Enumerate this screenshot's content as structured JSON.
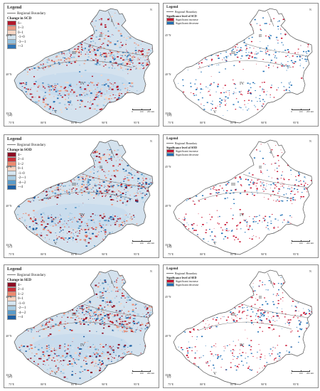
{
  "legend_heading": "Legend",
  "boundary_label": "Regional Boundary",
  "colors": {
    "land": "#d4e2ee",
    "boundary": "#777777",
    "sig_inc": "#c8102e",
    "sig_dec": "#1f6fb5"
  },
  "lat_labels": [
    "45°N",
    "40°N",
    "35°N"
  ],
  "lon_labels": [
    "75°E",
    "80°E",
    "85°E",
    "90°E",
    "95°E"
  ],
  "region_labels": [
    "I",
    "II",
    "III",
    "IV",
    "V"
  ],
  "scale": {
    "ticks": [
      "0",
      "100",
      "200 km"
    ]
  },
  "north_label": "N",
  "panels": [
    {
      "id": "a",
      "label": "(a)",
      "kind": "change",
      "legend_title": "Change in SCD",
      "classes": [
        {
          "label": "6~",
          "color": "#b2182b"
        },
        {
          "label": "1~3",
          "color": "#e99a83"
        },
        {
          "label": "0~1",
          "color": "#f6d6c4"
        },
        {
          "label": "-1~0",
          "color": "#d5e5f0"
        },
        {
          "label": "-3~-1",
          "color": "#92c0de"
        },
        {
          "label": "~-3",
          "color": "#2f74b4"
        }
      ]
    },
    {
      "id": "b",
      "label": "(b)",
      "kind": "sig",
      "legend_title": "Significance level of SCD",
      "classes": [
        {
          "label": "Significant increase",
          "color": "#c8102e"
        },
        {
          "label": "Significant decrease",
          "color": "#1f6fb5"
        }
      ]
    },
    {
      "id": "c",
      "label": "(c)",
      "kind": "change",
      "legend_title": "Change in SOD",
      "classes": [
        {
          "label": "4~",
          "color": "#8e0d24"
        },
        {
          "label": "2~4",
          "color": "#c8323b"
        },
        {
          "label": "1~2",
          "color": "#ec8a6f"
        },
        {
          "label": "0~1",
          "color": "#f7d3c0"
        },
        {
          "label": "-1~0",
          "color": "#d5e5f0"
        },
        {
          "label": "-2~-1",
          "color": "#a9cde3"
        },
        {
          "label": "-4~-2",
          "color": "#5a9bc9"
        },
        {
          "label": "~-4",
          "color": "#1d5fa3"
        }
      ]
    },
    {
      "id": "d",
      "label": "(d)",
      "kind": "sig",
      "legend_title": "Significance level of SOD",
      "classes": [
        {
          "label": "Significant increase",
          "color": "#c8102e"
        },
        {
          "label": "Significant decrease",
          "color": "#1f6fb5"
        }
      ]
    },
    {
      "id": "e",
      "label": "(e)",
      "kind": "change",
      "legend_title": "Change in SED",
      "classes": [
        {
          "label": "4~",
          "color": "#8e0d24"
        },
        {
          "label": "2~4",
          "color": "#c8323b"
        },
        {
          "label": "1~2",
          "color": "#ec8a6f"
        },
        {
          "label": "0~1",
          "color": "#f7d3c0"
        },
        {
          "label": "-1~0",
          "color": "#d5e5f0"
        },
        {
          "label": "-2~-1",
          "color": "#a9cde3"
        },
        {
          "label": "-4~-2",
          "color": "#5a9bc9"
        },
        {
          "label": "~-4",
          "color": "#1d5fa3"
        }
      ]
    },
    {
      "id": "f",
      "label": "(f)",
      "kind": "sig",
      "legend_title": "Significance level of SED",
      "classes": [
        {
          "label": "Significant increase",
          "color": "#c8102e"
        },
        {
          "label": "Significant decrease",
          "color": "#1f6fb5"
        }
      ]
    }
  ]
}
